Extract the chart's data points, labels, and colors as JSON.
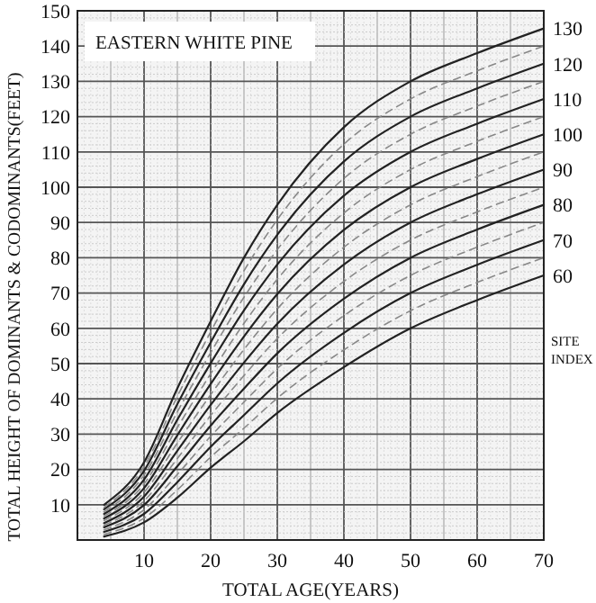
{
  "chart_data": {
    "type": "line",
    "title": "EASTERN WHITE PINE",
    "xlabel": "TOTAL AGE(YEARS)",
    "ylabel": "TOTAL HEIGHT OF DOMINANTS & CODOMINANTS(FEET)",
    "legend_title": "SITE INDEX",
    "x": [
      4,
      10,
      15,
      20,
      25,
      30,
      40,
      50,
      60,
      70
    ],
    "xlim": [
      0,
      70
    ],
    "xticks": [
      10,
      20,
      30,
      40,
      50,
      60,
      70
    ],
    "ylim": [
      0,
      150
    ],
    "yticks": [
      10,
      20,
      30,
      40,
      50,
      60,
      70,
      80,
      90,
      100,
      110,
      120,
      130,
      140,
      150
    ],
    "grid": true,
    "marker": "none",
    "series": [
      {
        "name": "60",
        "color": "#222222",
        "line_style": "solid",
        "values": [
          1,
          5,
          12,
          20.5,
          28,
          36,
          49,
          60,
          68,
          75
        ]
      },
      {
        "color": "#888888",
        "line_style": "dashed",
        "values": [
          1.6,
          6.2,
          14.2,
          23.5,
          31.7,
          40.2,
          53.9,
          65,
          73,
          80
        ]
      },
      {
        "name": "70",
        "color": "#222222",
        "line_style": "solid",
        "values": [
          2.3,
          7.4,
          16.4,
          26.4,
          35.4,
          44.4,
          58.7,
          70,
          78,
          85
        ]
      },
      {
        "color": "#888888",
        "line_style": "dashed",
        "values": [
          2.9,
          8.6,
          18.6,
          29.4,
          39.1,
          48.6,
          63.6,
          75,
          83,
          90
        ]
      },
      {
        "name": "80",
        "color": "#222222",
        "line_style": "solid",
        "values": [
          3.6,
          9.9,
          20.9,
          32.4,
          42.9,
          52.9,
          68.4,
          80,
          88,
          95
        ]
      },
      {
        "color": "#888888",
        "line_style": "dashed",
        "values": [
          4.2,
          11.1,
          23.1,
          35.3,
          46.6,
          57.1,
          73.3,
          85,
          93,
          100
        ]
      },
      {
        "name": "90",
        "color": "#222222",
        "line_style": "solid",
        "values": [
          4.8,
          12.3,
          25.3,
          38.3,
          50.3,
          61.3,
          78.1,
          90,
          98,
          105
        ]
      },
      {
        "color": "#888888",
        "line_style": "dashed",
        "values": [
          5.5,
          13.5,
          27.5,
          41.2,
          54,
          65.5,
          83,
          95,
          103,
          110
        ]
      },
      {
        "name": "100",
        "color": "#222222",
        "line_style": "solid",
        "values": [
          6.1,
          14.7,
          29.7,
          44.2,
          57.7,
          69.7,
          87.9,
          100,
          108,
          115
        ]
      },
      {
        "color": "#888888",
        "line_style": "dashed",
        "values": [
          6.8,
          15.9,
          31.9,
          47.1,
          61.4,
          73.9,
          92.7,
          105,
          113,
          120
        ]
      },
      {
        "name": "110",
        "color": "#222222",
        "line_style": "solid",
        "values": [
          7.4,
          17.1,
          34.1,
          50.1,
          65.1,
          78.1,
          97.6,
          110,
          118,
          125
        ]
      },
      {
        "color": "#888888",
        "line_style": "dashed",
        "values": [
          8,
          18.4,
          36.3,
          53.1,
          68.8,
          82.3,
          102.5,
          115,
          123,
          130
        ]
      },
      {
        "name": "120",
        "color": "#222222",
        "line_style": "solid",
        "values": [
          8.7,
          19.6,
          38.5,
          56,
          72.5,
          86.5,
          107.3,
          120,
          128,
          135
        ]
      },
      {
        "color": "#888888",
        "line_style": "dashed",
        "values": [
          9.3,
          20.8,
          40.7,
          59,
          76.3,
          90.8,
          112.2,
          125,
          133,
          140
        ]
      },
      {
        "name": "130",
        "color": "#222222",
        "line_style": "solid",
        "values": [
          10,
          22,
          43,
          62,
          80,
          95,
          117,
          130,
          138,
          145
        ]
      }
    ]
  }
}
